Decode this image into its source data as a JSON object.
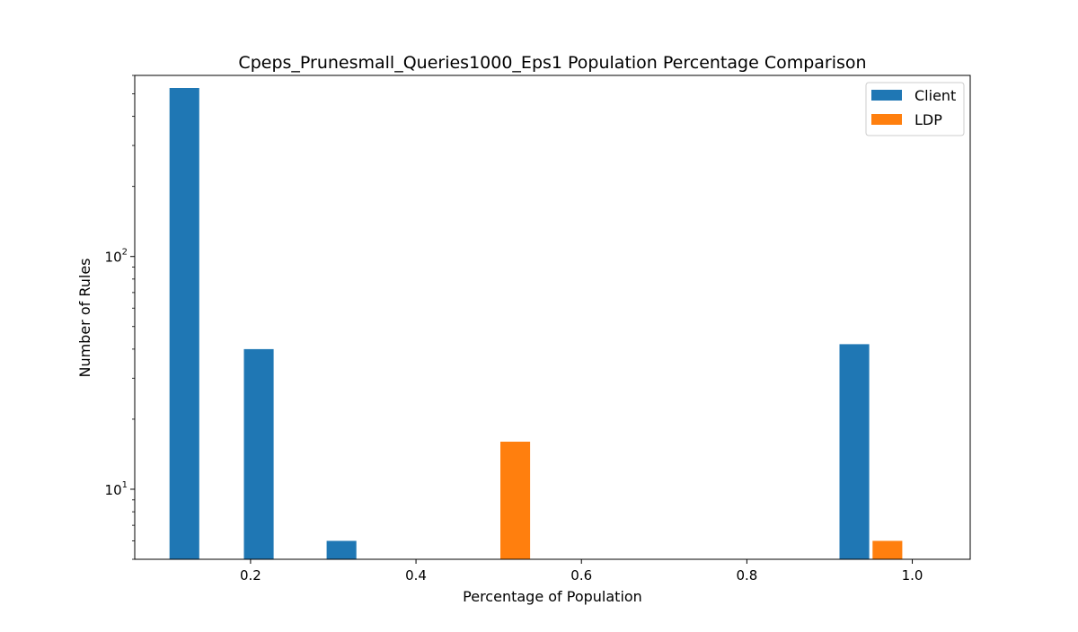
{
  "chart_data": {
    "type": "bar",
    "title": "Cpeps_Prunesmall_Queries1000_Eps1 Population Percentage Comparison",
    "xlabel": "Percentage of Population",
    "ylabel": "Number of Rules",
    "xlim": [
      0.06,
      1.07
    ],
    "ylim": [
      5,
      600
    ],
    "y_scale": "log",
    "x_ticks": [
      {
        "value": 0.2,
        "label": "0.2"
      },
      {
        "value": 0.4,
        "label": "0.4"
      },
      {
        "value": 0.6,
        "label": "0.6"
      },
      {
        "value": 0.8,
        "label": "0.8"
      },
      {
        "value": 1.0,
        "label": "1.0"
      }
    ],
    "y_ticks": [
      {
        "value": 10,
        "base": "10",
        "exp": "1"
      },
      {
        "value": 100,
        "base": "10",
        "exp": "2"
      }
    ],
    "bar_width": 0.036,
    "legend_position": "upper right",
    "grid": false,
    "series": [
      {
        "name": "Client",
        "color": "#1f77b4",
        "bars": [
          {
            "x": 0.12,
            "value": 530
          },
          {
            "x": 0.21,
            "value": 40
          },
          {
            "x": 0.31,
            "value": 6
          },
          {
            "x": 0.93,
            "value": 42
          }
        ]
      },
      {
        "name": "LDP",
        "color": "#ff7f0e",
        "bars": [
          {
            "x": 0.52,
            "value": 16
          },
          {
            "x": 0.97,
            "value": 6
          }
        ]
      }
    ]
  }
}
